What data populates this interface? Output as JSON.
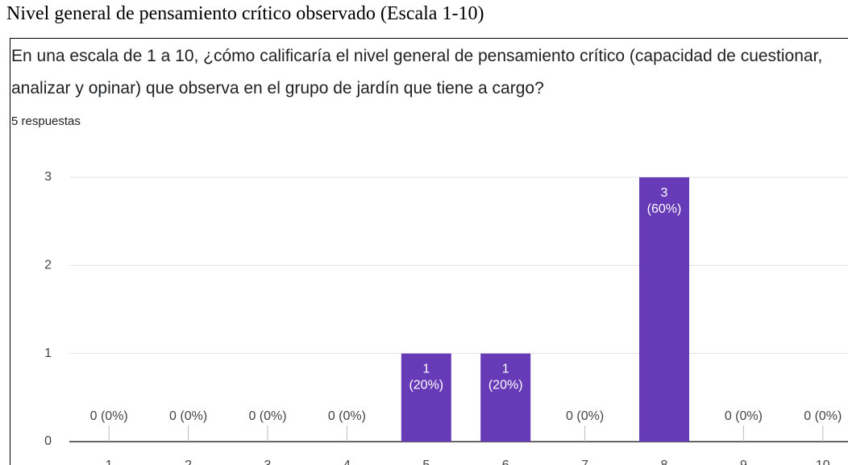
{
  "chart_data": {
    "type": "bar",
    "title": "Nivel general de pensamiento crítico observado (Escala 1-10)",
    "subtitle": "En una escala de 1 a 10, ¿cómo calificaría el nivel general de pensamiento crítico (capacidad de cuestionar, analizar y opinar) que observa en el grupo de jardín que tiene a cargo?",
    "note": "5 respuestas",
    "categories": [
      "1",
      "2",
      "3",
      "4",
      "5",
      "6",
      "7",
      "8",
      "9",
      "10"
    ],
    "values": [
      0,
      0,
      0,
      0,
      1,
      1,
      0,
      3,
      0,
      0
    ],
    "value_labels": [
      "0 (0%)",
      "0 (0%)",
      "0 (0%)",
      "0 (0%)",
      "1 (20%)",
      "1 (20%)",
      "0 (0%)",
      "3 (60%)",
      "0 (0%)",
      "0 (0%)"
    ],
    "color": "#673ab7",
    "ylim": [
      0,
      3
    ],
    "yticks": [
      0,
      1,
      2,
      3
    ],
    "grid": true
  }
}
